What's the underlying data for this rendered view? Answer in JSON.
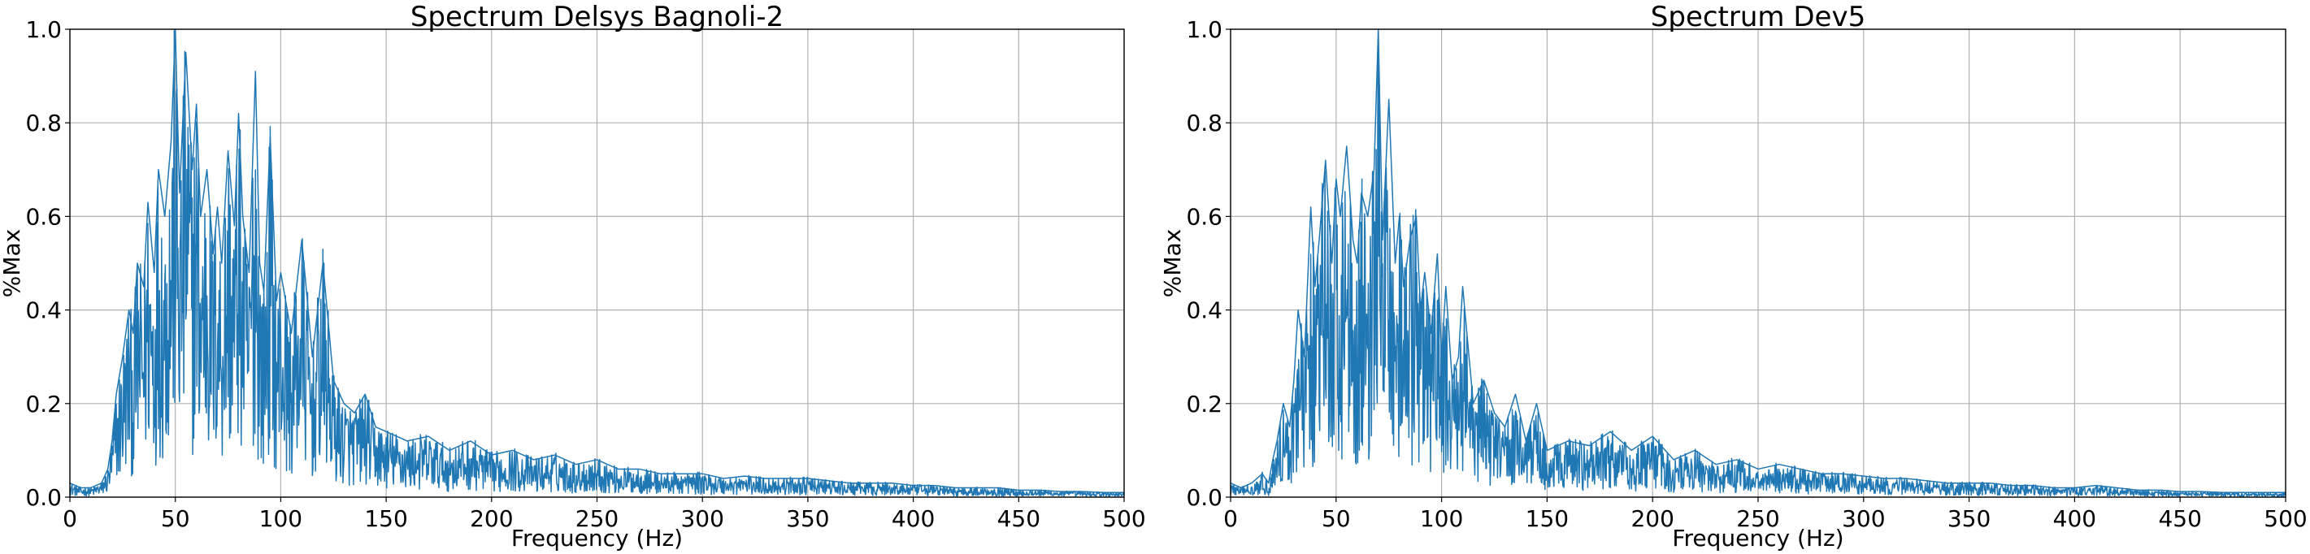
{
  "chart_data": [
    {
      "type": "line",
      "title": "Spectrum Delsys Bagnoli-2",
      "xlabel": "Frequency (Hz)",
      "ylabel": "%Max",
      "xlim": [
        0,
        500
      ],
      "ylim": [
        0,
        1.0
      ],
      "xticks": [
        0,
        50,
        100,
        150,
        200,
        250,
        300,
        350,
        400,
        450,
        500
      ],
      "yticks": [
        0.0,
        0.2,
        0.4,
        0.6,
        0.8,
        1.0
      ],
      "xtick_labels": [
        "0",
        "50",
        "100",
        "150",
        "200",
        "250",
        "300",
        "350",
        "400",
        "450",
        "500"
      ],
      "ytick_labels": [
        "0.0",
        "0.2",
        "0.4",
        "0.6",
        "0.8",
        "1.0"
      ],
      "grid": true,
      "line_color": "#1f77b4",
      "series": [
        {
          "x": [
            0,
            5,
            10,
            15,
            18,
            20,
            22,
            25,
            28,
            30,
            32,
            35,
            37,
            40,
            42,
            45,
            48,
            50,
            52,
            55,
            58,
            60,
            62,
            65,
            68,
            70,
            72,
            75,
            78,
            80,
            82,
            85,
            88,
            90,
            92,
            95,
            98,
            100,
            105,
            110,
            115,
            120,
            125,
            130,
            135,
            140,
            145,
            150,
            160,
            170,
            180,
            190,
            200,
            210,
            220,
            230,
            240,
            250,
            260,
            270,
            280,
            290,
            300,
            310,
            320,
            330,
            340,
            350,
            360,
            370,
            380,
            390,
            400,
            410,
            420,
            430,
            440,
            450,
            460,
            470,
            480,
            490,
            500
          ],
          "y": [
            0.03,
            0.02,
            0.02,
            0.03,
            0.06,
            0.12,
            0.22,
            0.3,
            0.4,
            0.35,
            0.5,
            0.45,
            0.63,
            0.48,
            0.7,
            0.6,
            0.76,
            1.0,
            0.65,
            0.95,
            0.7,
            0.84,
            0.6,
            0.7,
            0.52,
            0.62,
            0.5,
            0.74,
            0.58,
            0.82,
            0.6,
            0.48,
            0.91,
            0.5,
            0.44,
            0.77,
            0.42,
            0.48,
            0.35,
            0.55,
            0.3,
            0.5,
            0.25,
            0.2,
            0.18,
            0.22,
            0.15,
            0.14,
            0.12,
            0.13,
            0.1,
            0.12,
            0.09,
            0.1,
            0.08,
            0.09,
            0.07,
            0.08,
            0.06,
            0.06,
            0.05,
            0.05,
            0.05,
            0.04,
            0.045,
            0.04,
            0.04,
            0.04,
            0.035,
            0.03,
            0.03,
            0.03,
            0.025,
            0.025,
            0.02,
            0.02,
            0.02,
            0.015,
            0.015,
            0.012,
            0.012,
            0.01,
            0.01
          ]
        }
      ]
    },
    {
      "type": "line",
      "title": "Spectrum Dev5",
      "xlabel": "Frequency (Hz)",
      "ylabel": "%Max",
      "xlim": [
        0,
        500
      ],
      "ylim": [
        0,
        1.0
      ],
      "xticks": [
        0,
        50,
        100,
        150,
        200,
        250,
        300,
        350,
        400,
        450,
        500
      ],
      "yticks": [
        0.0,
        0.2,
        0.4,
        0.6,
        0.8,
        1.0
      ],
      "xtick_labels": [
        "0",
        "50",
        "100",
        "150",
        "200",
        "250",
        "300",
        "350",
        "400",
        "450",
        "500"
      ],
      "ytick_labels": [
        "0.0",
        "0.2",
        "0.4",
        "0.6",
        "0.8",
        "1.0"
      ],
      "grid": true,
      "line_color": "#1f77b4",
      "series": [
        {
          "x": [
            0,
            5,
            10,
            15,
            18,
            20,
            22,
            25,
            28,
            30,
            32,
            35,
            38,
            40,
            42,
            45,
            48,
            50,
            52,
            55,
            58,
            60,
            62,
            65,
            68,
            70,
            72,
            75,
            78,
            80,
            82,
            85,
            88,
            90,
            92,
            95,
            98,
            100,
            102,
            105,
            108,
            110,
            115,
            120,
            125,
            130,
            135,
            140,
            145,
            150,
            160,
            170,
            180,
            190,
            200,
            210,
            220,
            230,
            240,
            250,
            260,
            270,
            280,
            290,
            300,
            310,
            320,
            330,
            340,
            350,
            360,
            370,
            380,
            390,
            400,
            410,
            420,
            430,
            440,
            450,
            460,
            470,
            480,
            490,
            500
          ],
          "y": [
            0.03,
            0.02,
            0.03,
            0.05,
            0.03,
            0.08,
            0.12,
            0.2,
            0.15,
            0.25,
            0.4,
            0.3,
            0.62,
            0.45,
            0.55,
            0.72,
            0.5,
            0.68,
            0.6,
            0.75,
            0.55,
            0.5,
            0.65,
            0.6,
            0.7,
            1.0,
            0.55,
            0.85,
            0.5,
            0.6,
            0.45,
            0.55,
            0.6,
            0.4,
            0.48,
            0.35,
            0.52,
            0.3,
            0.45,
            0.25,
            0.3,
            0.45,
            0.2,
            0.25,
            0.18,
            0.15,
            0.22,
            0.12,
            0.2,
            0.1,
            0.12,
            0.11,
            0.14,
            0.1,
            0.13,
            0.08,
            0.1,
            0.07,
            0.08,
            0.06,
            0.07,
            0.06,
            0.05,
            0.05,
            0.045,
            0.04,
            0.04,
            0.035,
            0.03,
            0.03,
            0.03,
            0.025,
            0.025,
            0.02,
            0.02,
            0.025,
            0.02,
            0.015,
            0.015,
            0.012,
            0.012,
            0.01,
            0.01,
            0.01,
            0.01
          ]
        }
      ]
    }
  ]
}
